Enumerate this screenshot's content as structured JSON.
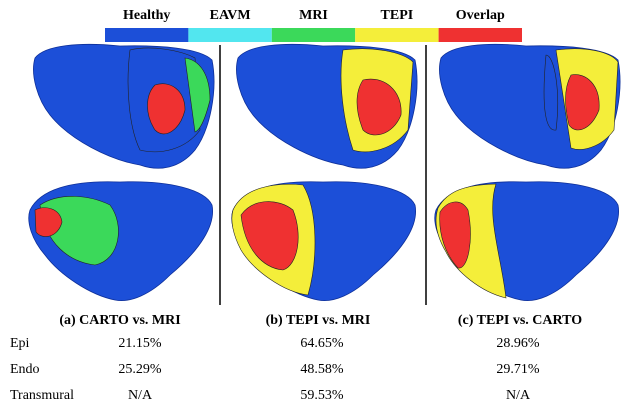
{
  "legend": [
    {
      "label": "Healthy",
      "color": "#1c4fd8"
    },
    {
      "label": "EAVM",
      "color": "#52e6ef"
    },
    {
      "label": "MRI",
      "color": "#3bd95a"
    },
    {
      "label": "TEPI",
      "color": "#f4ee3a"
    },
    {
      "label": "Overlap",
      "color": "#ef3131"
    }
  ],
  "panels": [
    {
      "caption": "(a) CARTO vs. MRI"
    },
    {
      "caption": "(b) TEPI vs. MRI"
    },
    {
      "caption": "(c) TEPI vs. CARTO"
    }
  ],
  "table": {
    "rows": [
      [
        "Epi",
        "21.15%",
        "64.65%",
        "28.96%"
      ],
      [
        "Endo",
        "25.29%",
        "48.58%",
        "29.71%"
      ],
      [
        "Transmural",
        "N/A",
        "59.53%",
        "N/A"
      ]
    ]
  }
}
